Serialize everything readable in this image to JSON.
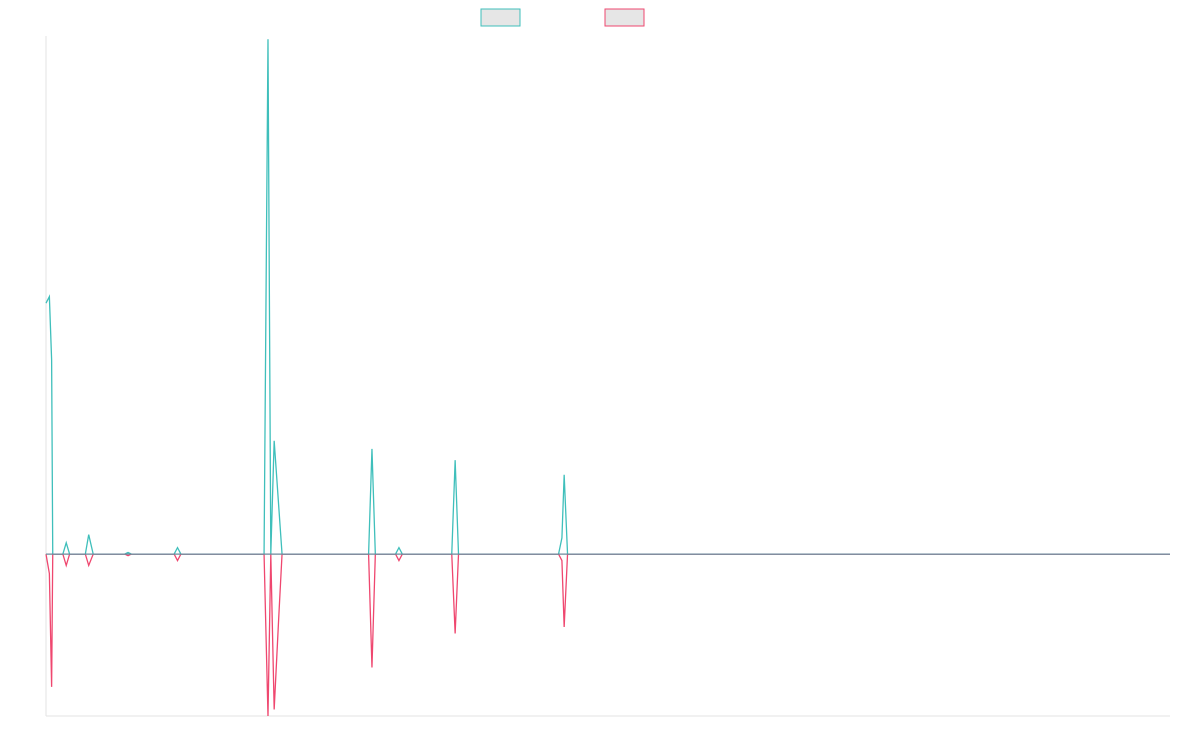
{
  "colors": {
    "series_pos": "#3fbfbb",
    "series_neg": "#ef476f",
    "baseline": "#6d8a9c",
    "axis": "#e3e3e3",
    "legend_fill": "#e6e6e6"
  },
  "chart_data": {
    "type": "line",
    "title": "",
    "xlabel": "",
    "ylabel": "",
    "grid": false,
    "legend_placement": "top-center",
    "xlim": [
      0,
      100
    ],
    "ylim": [
      -10,
      32
    ],
    "series": [
      {
        "values": [
          [
            0,
            15.5
          ],
          [
            0.3,
            15.9
          ],
          [
            0.5,
            12
          ],
          [
            0.6,
            0
          ],
          [
            1.5,
            0
          ],
          [
            1.8,
            0.7
          ],
          [
            2.1,
            0
          ],
          [
            3.5,
            0
          ],
          [
            3.8,
            1.2
          ],
          [
            4.2,
            0
          ],
          [
            7,
            0
          ],
          [
            7.3,
            0.1
          ],
          [
            7.6,
            0
          ],
          [
            11.4,
            0
          ],
          [
            11.7,
            0.4
          ],
          [
            12,
            0
          ],
          [
            19.4,
            0
          ],
          [
            19.75,
            31.8
          ],
          [
            20.0,
            0
          ],
          [
            20.3,
            7
          ],
          [
            20.7,
            3
          ],
          [
            21.0,
            0
          ],
          [
            28.7,
            0
          ],
          [
            29.0,
            6.5
          ],
          [
            29.3,
            0
          ],
          [
            31.1,
            0
          ],
          [
            31.4,
            0.4
          ],
          [
            31.7,
            0
          ],
          [
            36.1,
            0
          ],
          [
            36.4,
            5.8
          ],
          [
            36.7,
            0
          ],
          [
            45.6,
            0
          ],
          [
            45.9,
            1
          ],
          [
            46.1,
            4.9
          ],
          [
            46.4,
            0
          ],
          [
            100,
            0
          ]
        ]
      },
      {
        "values": [
          [
            0,
            0
          ],
          [
            0.3,
            -1.2
          ],
          [
            0.5,
            -8.2
          ],
          [
            0.6,
            0
          ],
          [
            1.5,
            0
          ],
          [
            1.8,
            -0.7
          ],
          [
            2.1,
            0
          ],
          [
            3.5,
            0
          ],
          [
            3.8,
            -0.7
          ],
          [
            4.2,
            0
          ],
          [
            7,
            0
          ],
          [
            7.3,
            -0.1
          ],
          [
            7.6,
            0
          ],
          [
            11.4,
            0
          ],
          [
            11.7,
            -0.4
          ],
          [
            12,
            0
          ],
          [
            19.4,
            0
          ],
          [
            19.75,
            -10
          ],
          [
            20.0,
            0
          ],
          [
            20.3,
            -9.6
          ],
          [
            20.7,
            -4
          ],
          [
            21.0,
            0
          ],
          [
            28.7,
            0
          ],
          [
            29.0,
            -7
          ],
          [
            29.3,
            0
          ],
          [
            31.1,
            0
          ],
          [
            31.4,
            -0.4
          ],
          [
            31.7,
            0
          ],
          [
            36.1,
            0
          ],
          [
            36.4,
            -4.9
          ],
          [
            36.7,
            0
          ],
          [
            45.6,
            0
          ],
          [
            45.9,
            -0.4
          ],
          [
            46.1,
            -4.5
          ],
          [
            46.4,
            0
          ],
          [
            100,
            0
          ]
        ]
      }
    ]
  }
}
